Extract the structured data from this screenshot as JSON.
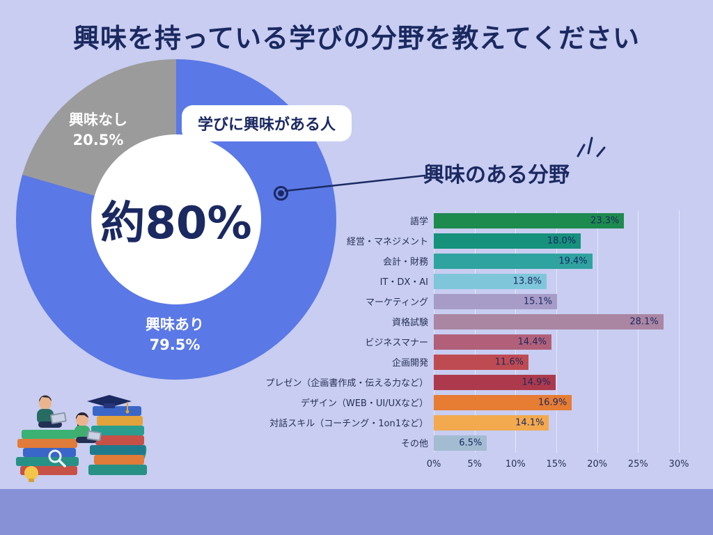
{
  "title": "興味を持っている学びの分野を教えてください",
  "colors": {
    "background": "#c8cdf1",
    "band": "#8691d6",
    "navy": "#1b2961",
    "donut_blue": "#5a78e6",
    "donut_gray": "#9b9b9b"
  },
  "chart_data": [
    {
      "type": "pie",
      "subtype": "donut",
      "title": "学びに興味がある人",
      "center_label": "約80%",
      "segments": [
        {
          "name": "興味あり",
          "pct": "79.5%",
          "value": 79.5,
          "color": "#5a78e6"
        },
        {
          "name": "興味なし",
          "pct": "20.5%",
          "value": 20.5,
          "color": "#9b9b9b"
        }
      ]
    },
    {
      "type": "bar",
      "orientation": "horizontal",
      "title": "興味のある分野",
      "categories": [
        "語学",
        "経営・マネジメント",
        "会計・財務",
        "IT・DX・AI",
        "マーケティング",
        "資格試験",
        "ビジネスマナー",
        "企画開発",
        "プレゼン（企画書作成・伝える力など）",
        "デザイン（WEB・UI/UXなど）",
        "対話スキル（コーチング・1on1など）",
        "その他"
      ],
      "values": [
        23.3,
        18.0,
        19.4,
        13.8,
        15.1,
        28.1,
        14.4,
        11.6,
        14.9,
        16.9,
        14.1,
        6.5
      ],
      "value_labels": [
        "23.3%",
        "18.0%",
        "19.4%",
        "13.8%",
        "15.1%",
        "28.1%",
        "14.4%",
        "11.6%",
        "14.9%",
        "16.9%",
        "14.1%",
        "6.5%"
      ],
      "bar_colors": [
        "#1d8a4e",
        "#15917c",
        "#2fa3a0",
        "#7fc6da",
        "#a79cc8",
        "#aa86a3",
        "#b2607a",
        "#bf4b52",
        "#ad3a4c",
        "#e77c33",
        "#f3a94d",
        "#a3bcd2"
      ],
      "xlim": [
        0,
        30
      ],
      "x_ticks": [
        "0%",
        "5%",
        "10%",
        "15%",
        "20%",
        "25%",
        "30%"
      ],
      "grid": true,
      "legend": false
    }
  ]
}
